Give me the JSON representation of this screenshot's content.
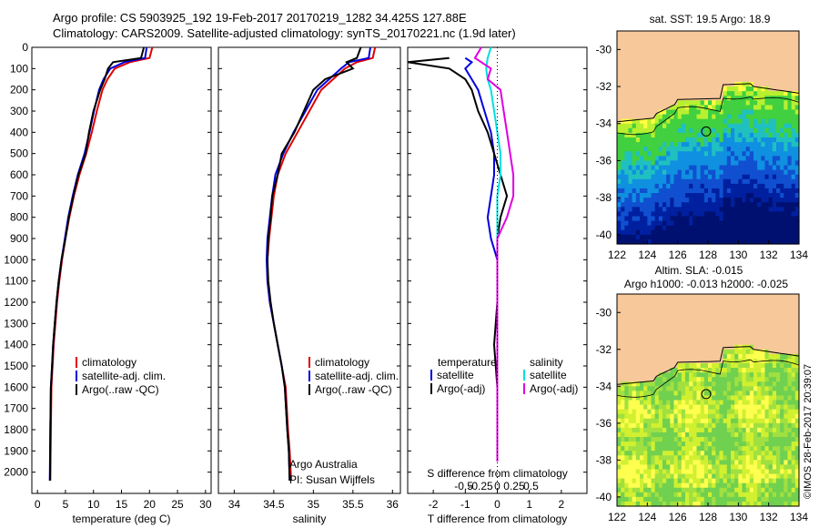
{
  "title_line1": "Argo profile: CS 5903925_192 19-Feb-2017 20170219_1282 34.425S 127.88E",
  "title_line2": "Climatology: CARS2009. Satellite-adjusted climatology: synTS_20170221.nc (1.9d later)",
  "copyright": "©IMOS 28-Feb-2017 20:39:07",
  "credit_line1": "Argo Australia",
  "credit_line2": "PI: Susan Wijffels",
  "colors": {
    "climatology": "#e00000",
    "satellite": "#0000e0",
    "argo": "#000000",
    "satellite_s": "#00e0e0",
    "argo_s": "#e000e0",
    "land": "#f7c89a"
  },
  "chart_data": [
    {
      "type": "line",
      "name": "temperature",
      "xlabel": "temperature (deg C)",
      "ylabel": "",
      "xlim": [
        -1,
        31
      ],
      "ylim": [
        2100,
        0
      ],
      "xticks": [
        0,
        5,
        10,
        15,
        20,
        25,
        30
      ],
      "yticks": [
        0,
        100,
        200,
        300,
        400,
        500,
        600,
        700,
        800,
        900,
        1000,
        1100,
        1200,
        1300,
        1400,
        1500,
        1600,
        1700,
        1800,
        1900,
        2000
      ],
      "legend": [
        "climatology",
        "satellite-adj. clim.",
        "Argo(..raw -QC)"
      ],
      "series": [
        {
          "name": "climatology",
          "color": "#e00000",
          "x": [
            20.5,
            20.0,
            16.5,
            13.8,
            12.5,
            11.6,
            10.6,
            9.7,
            8.7,
            7.5,
            6.5,
            5.7,
            5.0,
            4.4,
            3.9,
            3.5,
            3.2,
            2.9,
            2.7,
            2.5,
            2.4,
            2.3
          ],
          "y": [
            0,
            50,
            70,
            100,
            150,
            200,
            300,
            400,
            500,
            600,
            700,
            800,
            900,
            1000,
            1100,
            1200,
            1300,
            1400,
            1500,
            1600,
            1800,
            2040
          ]
        },
        {
          "name": "satellite-adj. clim.",
          "color": "#0000e0",
          "x": [
            19.5,
            19.2,
            15.5,
            13.0,
            11.8,
            11.0,
            10.1,
            9.3,
            8.4,
            7.2,
            6.3,
            5.5,
            4.9,
            4.3,
            3.8,
            3.4,
            3.1,
            2.8,
            2.6,
            2.4,
            2.3,
            2.2
          ],
          "y": [
            0,
            50,
            70,
            100,
            150,
            200,
            300,
            400,
            500,
            600,
            700,
            800,
            900,
            1000,
            1100,
            1200,
            1300,
            1400,
            1500,
            1600,
            1800,
            2040
          ]
        },
        {
          "name": "Argo(..raw -QC)",
          "color": "#000000",
          "x": [
            19.0,
            18.5,
            13.5,
            12.6,
            12.0,
            11.2,
            10.0,
            9.2,
            8.6,
            7.3,
            6.4,
            5.6,
            5.0,
            4.3,
            3.8,
            3.4,
            3.1,
            2.8,
            2.6,
            2.4,
            2.3,
            2.25
          ],
          "y": [
            0,
            50,
            70,
            100,
            150,
            200,
            300,
            400,
            500,
            600,
            700,
            800,
            900,
            1000,
            1100,
            1200,
            1300,
            1400,
            1500,
            1600,
            1800,
            2040
          ]
        }
      ]
    },
    {
      "type": "line",
      "name": "salinity",
      "xlabel": "salinity",
      "xlim": [
        33.8,
        36.1
      ],
      "ylim": [
        2100,
        0
      ],
      "xticks": [
        34,
        34.5,
        35,
        35.5,
        36
      ],
      "legend": [
        "climatology",
        "satellite-adj. clim.",
        "Argo(..raw -QC)"
      ],
      "series": [
        {
          "name": "climatology",
          "color": "#e00000",
          "x": [
            35.78,
            35.75,
            35.55,
            35.4,
            35.25,
            35.1,
            34.95,
            34.8,
            34.65,
            34.55,
            34.5,
            34.47,
            34.44,
            34.42,
            34.42,
            34.45,
            34.5,
            34.55,
            34.6,
            34.65,
            34.68,
            34.7,
            34.72
          ],
          "y": [
            0,
            50,
            70,
            100,
            150,
            200,
            300,
            400,
            500,
            600,
            700,
            800,
            900,
            1000,
            1100,
            1200,
            1300,
            1400,
            1500,
            1600,
            1800,
            1900,
            2040
          ]
        },
        {
          "name": "satellite-adj. clim.",
          "color": "#0000e0",
          "x": [
            35.72,
            35.7,
            35.45,
            35.35,
            35.2,
            35.05,
            34.9,
            34.75,
            34.62,
            34.52,
            34.48,
            34.45,
            34.42,
            34.41,
            34.42,
            34.45,
            34.5,
            34.55,
            34.6,
            34.64,
            34.67,
            34.69,
            34.7
          ],
          "y": [
            0,
            50,
            70,
            100,
            150,
            200,
            300,
            400,
            500,
            600,
            700,
            800,
            900,
            1000,
            1100,
            1200,
            1300,
            1400,
            1500,
            1600,
            1800,
            1900,
            2040
          ]
        },
        {
          "name": "Argo(..raw -QC)",
          "color": "#000000",
          "x": [
            35.6,
            35.55,
            35.42,
            35.5,
            35.15,
            35.0,
            34.88,
            34.76,
            34.6,
            34.55,
            34.48,
            34.46,
            34.43,
            34.42,
            34.43,
            34.46,
            34.5,
            34.55,
            34.6,
            34.64,
            34.67,
            34.69,
            34.7
          ],
          "y": [
            0,
            50,
            70,
            100,
            150,
            200,
            300,
            400,
            500,
            600,
            700,
            800,
            900,
            1000,
            1100,
            1200,
            1300,
            1400,
            1500,
            1600,
            1800,
            1900,
            2040
          ]
        }
      ]
    },
    {
      "type": "line",
      "name": "difference",
      "xlabel": "T difference from climatology",
      "xlabel_top": "S difference from climatology",
      "xlim": [
        -2.8,
        2.8
      ],
      "ylim": [
        2100,
        0
      ],
      "xticks": [
        -2,
        -1,
        0,
        1,
        2
      ],
      "xticks_top": [
        "-0.5",
        "-0.25",
        "0",
        "0.25",
        "0.5"
      ],
      "legend_t": {
        "title": "temperature",
        "items": [
          "satellite",
          "Argo(-adj)"
        ]
      },
      "legend_s": {
        "title": "salinity",
        "items": [
          "satellite",
          "Argo(-adj)"
        ]
      },
      "series": [
        {
          "name": "temperature satellite",
          "color": "#0000e0",
          "x": [
            -1.0,
            -0.8,
            -1.0,
            -0.8,
            -0.6,
            -0.4,
            -0.2,
            -0.1,
            -0.1,
            -0.2,
            -0.3,
            -0.2,
            0.0,
            0.0,
            0.0,
            0.0,
            0.0,
            0.0
          ],
          "y": [
            50,
            70,
            100,
            150,
            200,
            300,
            400,
            500,
            600,
            700,
            800,
            900,
            1000,
            1200,
            1400,
            1600,
            1800,
            1950
          ]
        },
        {
          "name": "temperature Argo(-adj)",
          "color": "#000000",
          "x": [
            -1.5,
            -2.8,
            -1.5,
            -1.0,
            -0.8,
            -0.6,
            -0.3,
            -0.1,
            0.1,
            0.3,
            0.1,
            0.0,
            0.0,
            0.0,
            -0.1,
            0.0,
            0.0,
            0.0
          ],
          "y": [
            50,
            70,
            100,
            150,
            200,
            300,
            400,
            500,
            600,
            700,
            800,
            900,
            1000,
            1200,
            1400,
            1600,
            1800,
            1950
          ]
        },
        {
          "name": "salinity satellite",
          "color": "#00e0e0",
          "x": [
            -0.2,
            -0.3,
            -0.35,
            -0.3,
            -0.2,
            -0.1,
            0.0,
            0.1,
            0.1,
            0.0,
            0.0,
            0.0,
            0.0,
            0.0,
            0.0,
            0.0,
            0.0,
            0.0
          ],
          "y": [
            0,
            50,
            100,
            150,
            200,
            300,
            400,
            500,
            600,
            700,
            800,
            900,
            1000,
            1200,
            1400,
            1600,
            1800,
            1950
          ]
        },
        {
          "name": "salinity Argo(-adj)",
          "color": "#e000e0",
          "x": [
            -0.5,
            -0.7,
            -0.2,
            -0.3,
            0.1,
            0.2,
            0.3,
            0.4,
            0.5,
            0.5,
            0.3,
            0.0,
            0.0,
            0.0,
            0.0,
            0.0,
            0.0,
            0.0
          ],
          "y": [
            0,
            50,
            100,
            150,
            200,
            300,
            400,
            500,
            600,
            700,
            800,
            900,
            1000,
            1200,
            1400,
            1600,
            1800,
            1950
          ]
        }
      ]
    },
    {
      "type": "heatmap",
      "name": "sst_map",
      "title": "sat. SST: 19.5  Argo: 18.9",
      "xlim": [
        122,
        134
      ],
      "ylim": [
        -40.5,
        -29
      ],
      "xticks": [
        122,
        124,
        126,
        128,
        130,
        132,
        134
      ],
      "yticks": [
        -30,
        -32,
        -34,
        -36,
        -38,
        -40
      ],
      "marker": {
        "lon": 127.88,
        "lat": -34.425
      }
    },
    {
      "type": "heatmap",
      "name": "sla_map",
      "title": "Altim. SLA: -0.015",
      "subtitle": "Argo h1000: -0.013 h2000: -0.025",
      "xlim": [
        122,
        134
      ],
      "ylim": [
        -40.5,
        -29
      ],
      "xticks": [
        122,
        124,
        126,
        128,
        130,
        132,
        134
      ],
      "yticks": [
        -30,
        -32,
        -34,
        -36,
        -38,
        -40
      ],
      "marker": {
        "lon": 127.88,
        "lat": -34.425
      }
    }
  ]
}
